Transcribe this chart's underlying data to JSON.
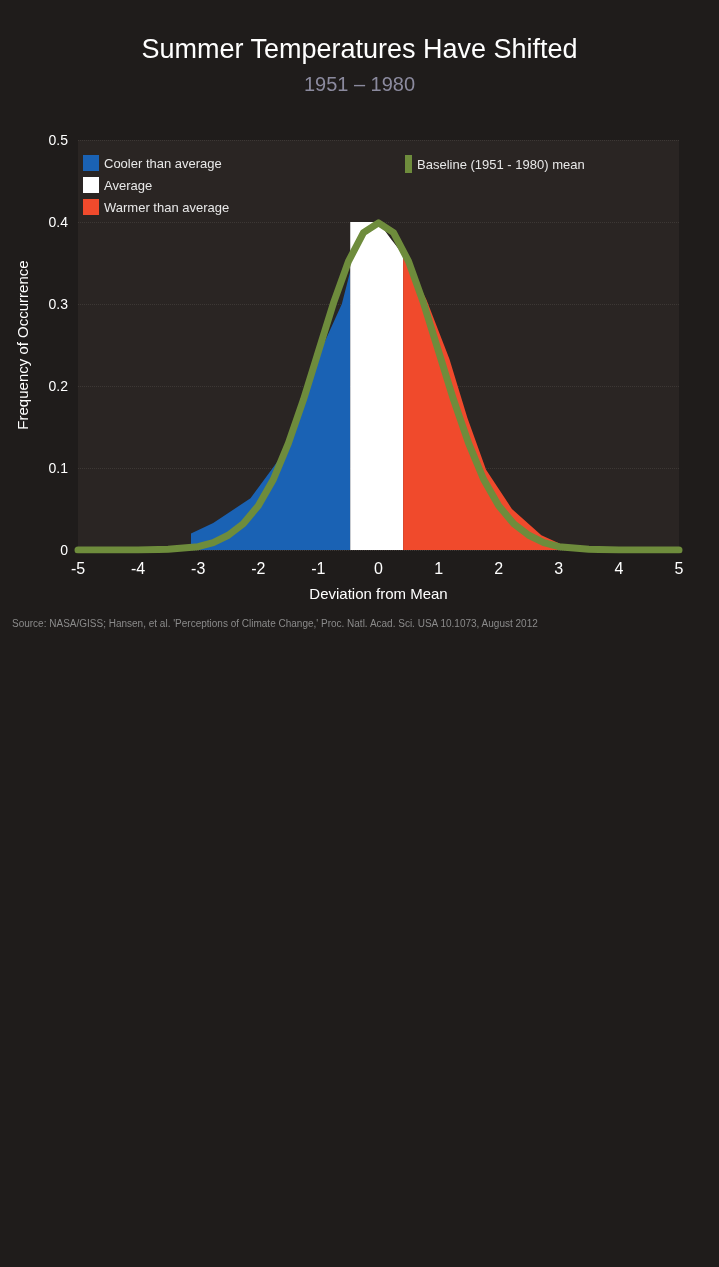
{
  "chart_data": {
    "type": "area",
    "title": "Summer Temperatures Have Shifted",
    "subtitle": "1951 – 1980",
    "xlabel": "Deviation from Mean",
    "ylabel": "Frequency of Occurrence",
    "annotations": [
      "Source: NASA/GISS; Hansen, et al. 'Perceptions of Climate Change,' Proc. Natl. Acad. Sci. USA 10.1073, August 2012"
    ],
    "xlim": [
      -5,
      5
    ],
    "xticks": [
      -5,
      -4,
      -3,
      -2,
      -1,
      0,
      1,
      2,
      3,
      4,
      5
    ],
    "ylim": [
      0,
      0.5
    ],
    "yticks": [
      0,
      0.1,
      0.2,
      0.3,
      0.4,
      0.5
    ],
    "grid": "y",
    "legend": "top left",
    "marker": "none",
    "series": [
      {
        "name": "Cooler than average",
        "color": "#1a62b4",
        "x": [
          -3.12,
          -3.12,
          -2.75,
          -2.13,
          -1.61,
          -1.33,
          -0.95,
          -0.61,
          -0.47,
          -0.47
        ],
        "values": [
          0,
          0.02,
          0.033,
          0.063,
          0.115,
          0.16,
          0.245,
          0.3,
          0.34,
          0
        ]
      },
      {
        "name": "Average",
        "color": "#ffffff",
        "x": [
          -0.47,
          -0.47,
          -0.3,
          0,
          0.2,
          0.41,
          0.41
        ],
        "values": [
          0,
          0.4,
          0.4,
          0.4,
          0.38,
          0.36,
          0
        ]
      },
      {
        "name": "Warmer than average",
        "color": "#f04a2c",
        "x": [
          0.41,
          0.41,
          0.8,
          1.18,
          1.48,
          1.79,
          2.22,
          2.71,
          3.25
        ],
        "values": [
          0,
          0.36,
          0.305,
          0.233,
          0.161,
          0.098,
          0.05,
          0.018,
          0
        ]
      },
      {
        "name": "Baseline (1951 - 1980) mean",
        "type": "line",
        "color": "#6e8c3c",
        "x": [
          -5,
          -4.5,
          -4,
          -3.5,
          -3,
          -2.75,
          -2.5,
          -2.25,
          -2,
          -1.75,
          -1.5,
          -1.25,
          -1,
          -0.75,
          -0.5,
          -0.25,
          0,
          0.25,
          0.5,
          0.75,
          1,
          1.25,
          1.5,
          1.75,
          2,
          2.25,
          2.5,
          2.75,
          3,
          3.5,
          4,
          4.5,
          5
        ],
        "values": [
          0,
          0,
          0,
          0.001,
          0.004,
          0.009,
          0.018,
          0.032,
          0.054,
          0.086,
          0.13,
          0.183,
          0.242,
          0.301,
          0.352,
          0.387,
          0.399,
          0.387,
          0.352,
          0.301,
          0.242,
          0.183,
          0.13,
          0.086,
          0.054,
          0.032,
          0.018,
          0.009,
          0.004,
          0.001,
          0,
          0,
          0
        ]
      }
    ]
  }
}
